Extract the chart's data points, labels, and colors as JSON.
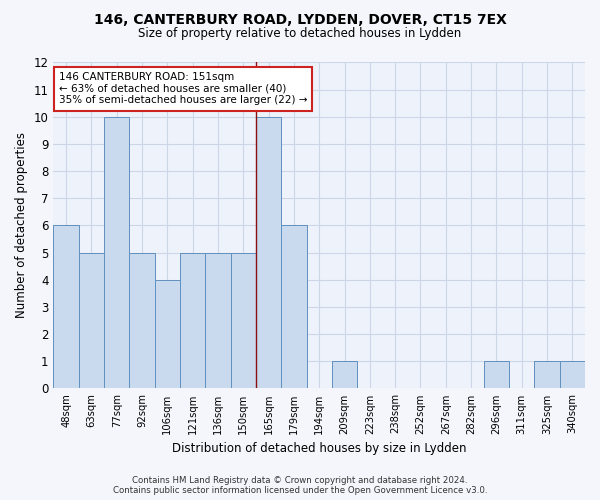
{
  "title": "146, CANTERBURY ROAD, LYDDEN, DOVER, CT15 7EX",
  "subtitle": "Size of property relative to detached houses in Lydden",
  "xlabel": "Distribution of detached houses by size in Lydden",
  "ylabel": "Number of detached properties",
  "categories": [
    "48sqm",
    "63sqm",
    "77sqm",
    "92sqm",
    "106sqm",
    "121sqm",
    "136sqm",
    "150sqm",
    "165sqm",
    "179sqm",
    "194sqm",
    "209sqm",
    "223sqm",
    "238sqm",
    "252sqm",
    "267sqm",
    "282sqm",
    "296sqm",
    "311sqm",
    "325sqm",
    "340sqm"
  ],
  "values": [
    6,
    5,
    10,
    5,
    4,
    5,
    5,
    5,
    10,
    6,
    0,
    1,
    0,
    0,
    0,
    0,
    0,
    1,
    0,
    1,
    1
  ],
  "bar_color": "#c9d9ee",
  "bar_edge_color": "#6090c0",
  "vline_index": 7.5,
  "vline_color": "#8b1010",
  "annotation_line1": "146 CANTERBURY ROAD: 151sqm",
  "annotation_line2": "← 63% of detached houses are smaller (40)",
  "annotation_line3": "35% of semi-detached houses are larger (22) →",
  "annotation_box_facecolor": "#ffffff",
  "annotation_box_edgecolor": "#cc2222",
  "grid_color": "#ccd6e8",
  "background_color": "#eef2fa",
  "fig_facecolor": "#f4f6fc",
  "footer_line1": "Contains HM Land Registry data © Crown copyright and database right 2024.",
  "footer_line2": "Contains public sector information licensed under the Open Government Licence v3.0.",
  "ylim": [
    0,
    12
  ],
  "yticks": [
    0,
    1,
    2,
    3,
    4,
    5,
    6,
    7,
    8,
    9,
    10,
    11,
    12
  ]
}
